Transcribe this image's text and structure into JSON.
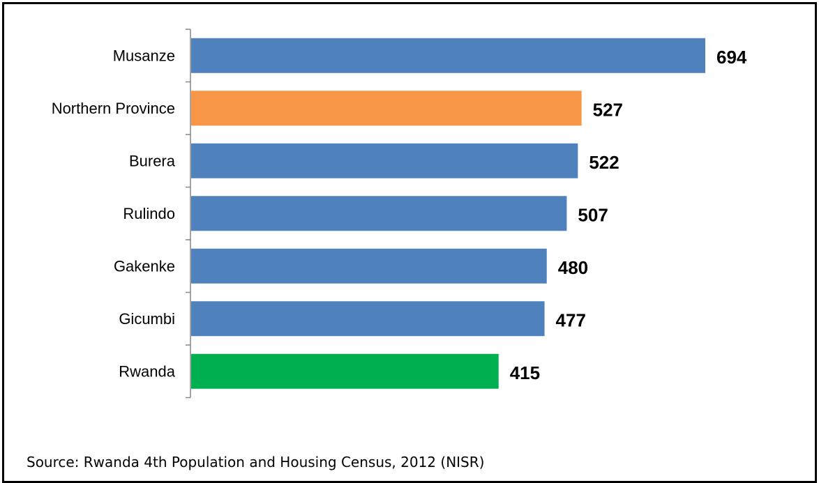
{
  "chart_data": {
    "type": "bar",
    "orientation": "horizontal",
    "categories": [
      "Musanze",
      "Northern Province",
      "Burera",
      "Rulindo",
      "Gakenke",
      "Gicumbi",
      "Rwanda"
    ],
    "values": [
      694,
      527,
      522,
      507,
      480,
      477,
      415
    ],
    "colors": [
      "#4F81BD",
      "#F79646",
      "#4F81BD",
      "#4F81BD",
      "#4F81BD",
      "#4F81BD",
      "#00B050"
    ],
    "xlim": [
      0,
      694
    ],
    "grid": false,
    "legend": false
  },
  "source": "Source: Rwanda 4th Population and Housing Census, 2012 (NISR)"
}
